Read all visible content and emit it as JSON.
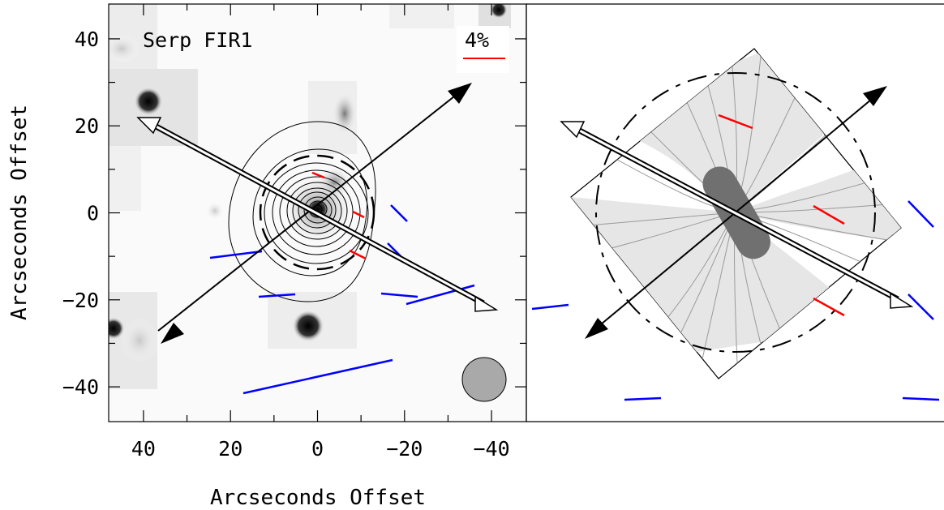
{
  "figure": {
    "source_label": "Serp FIR1",
    "scale_label": "4%",
    "x_axis_title": "Arcseconds Offset",
    "y_axis_title": "Arcseconds Offset",
    "colors": {
      "pol_vector_red": "#ff0000",
      "pol_vector_blue": "#0000ff",
      "beam_fill": "#a9a9a9",
      "model_fill": "#e6e6e6",
      "core_fill": "#707070"
    }
  },
  "chart_data": {
    "type": "scatter",
    "x_ticks": [
      "40",
      "20",
      "0",
      "−20",
      "−40"
    ],
    "y_ticks": [
      "40",
      "20",
      "0",
      "−20",
      "−40"
    ],
    "xlim": [
      48,
      -48
    ],
    "ylim": [
      -48,
      48
    ],
    "grid": false,
    "x_reversed": true
  }
}
